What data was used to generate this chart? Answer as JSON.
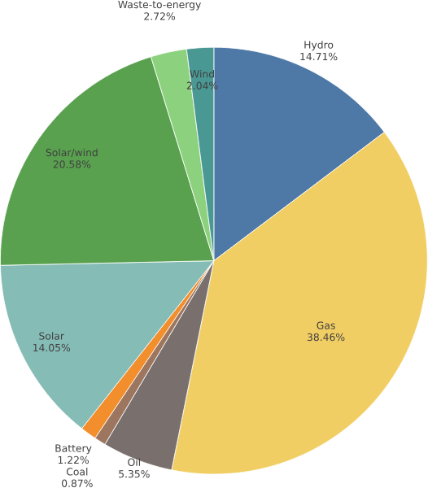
{
  "chart_data": {
    "type": "pie",
    "categories": [
      "Hydro",
      "Gas",
      "Oil",
      "Coal",
      "Battery",
      "Solar",
      "Solar/wind",
      "Waste-to-energy",
      "Wind"
    ],
    "values": [
      14.71,
      38.46,
      5.35,
      0.87,
      1.22,
      14.05,
      20.58,
      2.72,
      2.04
    ],
    "value_labels": [
      "14.71%",
      "38.46%",
      "5.35%",
      "0.87%",
      "1.22%",
      "14.05%",
      "20.58%",
      "2.72%",
      "2.04%"
    ],
    "colors": [
      "#4e79a7",
      "#f1ce63",
      "#79706e",
      "#9d7660",
      "#f28e2b",
      "#86bcb6",
      "#59a14f",
      "#8cd17d",
      "#499894"
    ]
  }
}
